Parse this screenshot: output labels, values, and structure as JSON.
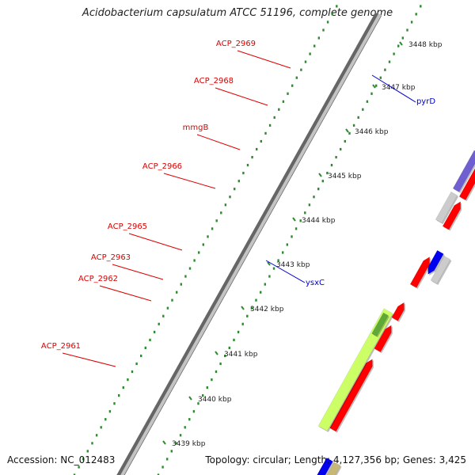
{
  "title": "Acidobacterium capsulatum ATCC 51196, complete genome",
  "footer": {
    "accession": "Accession: NC_012483",
    "summary": "Topology: circular; Length: 4,127,356 bp; Genes: 3,425"
  },
  "colors": {
    "forward_gene": "#ff0000",
    "other_gene": "#cccccc",
    "rna_gene": "#ccff66",
    "rna_feature": "#5fa83a",
    "mmgB_gene": "#6f5fd0",
    "reverse_gene": "#0000ee",
    "reverse_gene_light": "#22d0f0",
    "tick": "#2e8b2e",
    "label_forward": "#dd0000",
    "label_reverse": "#0000cc"
  },
  "kbp_ticks": [
    "3439 kbp",
    "3440 kbp",
    "3441 kbp",
    "3442 kbp",
    "3443 kbp",
    "3444 kbp",
    "3445 kbp",
    "3446 kbp",
    "3447 kbp",
    "3448 kbp"
  ],
  "forward_labels": [
    "ACP_2969",
    "ACP_2968",
    "mmgB",
    "ACP_2966",
    "ACP_2965",
    "ACP_2963",
    "ACP_2962",
    "ACP_2961"
  ],
  "reverse_labels": [
    "pyrD",
    "ysxC"
  ]
}
